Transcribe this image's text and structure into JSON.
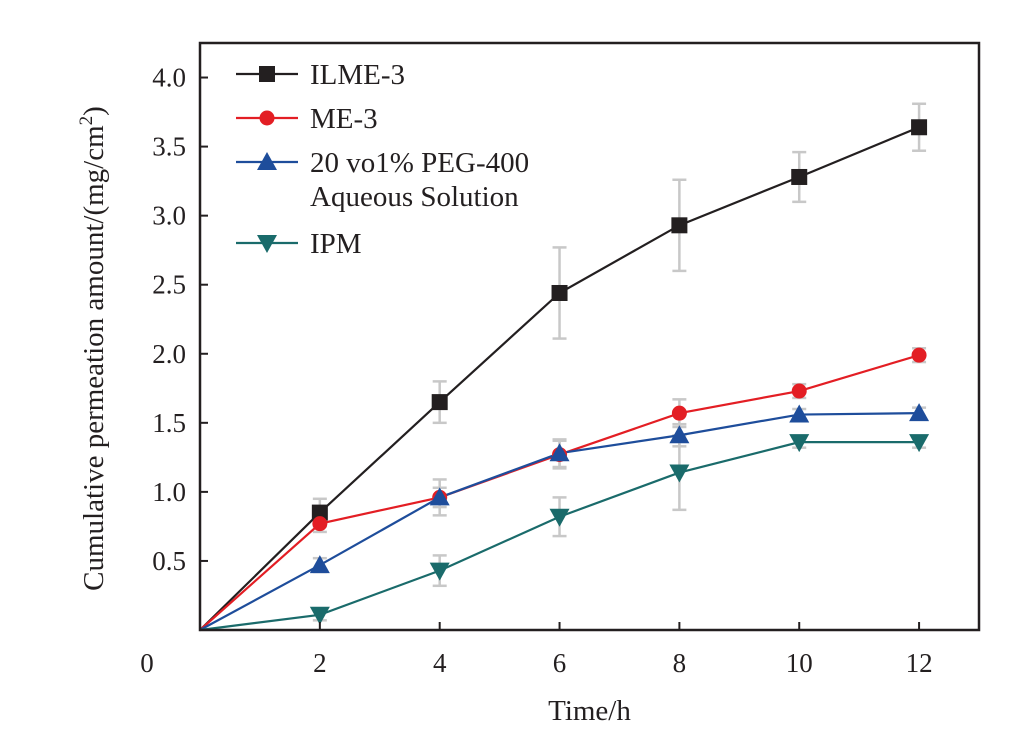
{
  "chart_data": {
    "type": "line",
    "xlabel": "Time/h",
    "ylabel": "Cumulative permeation amount/(mg/cm",
    "ylabel_superscript": "2",
    "ylabel_suffix": ")",
    "xlim": [
      0,
      13
    ],
    "ylim": [
      0,
      4.25
    ],
    "x_origin_label": "0",
    "x_ticks": [
      2,
      4,
      6,
      8,
      10,
      12
    ],
    "x_tick_labels": [
      "2",
      "4",
      "6",
      "8",
      "10",
      "12"
    ],
    "y_ticks": [
      0.5,
      1.0,
      1.5,
      2.0,
      2.5,
      3.0,
      3.5,
      4.0
    ],
    "y_tick_labels": [
      "0.5",
      "1.0",
      "1.5",
      "2.0",
      "2.5",
      "3.0",
      "3.5",
      "4.0"
    ],
    "grid": false,
    "legend_position": "top-left",
    "x": [
      0,
      2,
      4,
      6,
      8,
      10,
      12
    ],
    "series": [
      {
        "name": "ILME-3",
        "marker": "square",
        "color": "#231f20",
        "values": [
          0,
          0.85,
          1.65,
          2.44,
          2.93,
          3.28,
          3.64
        ],
        "errors": [
          0,
          0.1,
          0.15,
          0.33,
          0.33,
          0.18,
          0.17
        ]
      },
      {
        "name": "ME-3",
        "marker": "circle",
        "color": "#e31e24",
        "values": [
          0,
          0.77,
          0.96,
          1.27,
          1.57,
          1.73,
          1.99
        ],
        "errors": [
          0,
          0.06,
          0.07,
          0.1,
          0.1,
          0.05,
          0.05
        ]
      },
      {
        "name": "20 vo1% PEG-400",
        "name_line2": "Aqueous Solution",
        "marker": "triangle-up",
        "color": "#1e4d9b",
        "values": [
          0,
          0.47,
          0.96,
          1.28,
          1.41,
          1.56,
          1.57
        ],
        "errors": [
          0,
          0.05,
          0.13,
          0.1,
          0.08,
          0.04,
          0.04
        ]
      },
      {
        "name": "IPM",
        "marker": "triangle-down",
        "color": "#1a6b6b",
        "values": [
          0,
          0.11,
          0.43,
          0.82,
          1.14,
          1.36,
          1.36
        ],
        "errors": [
          0,
          0.04,
          0.11,
          0.14,
          0.27,
          0.04,
          0.04
        ]
      }
    ],
    "error_bar_color": "#c8c8c8",
    "axis_color": "#231f20"
  }
}
